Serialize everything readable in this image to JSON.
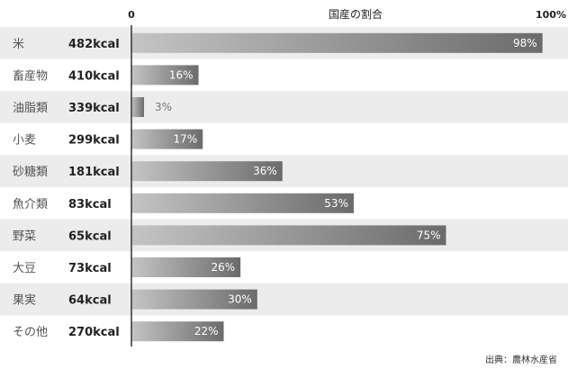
{
  "chart_data": {
    "type": "bar",
    "orientation": "horizontal",
    "title": "国産の割合",
    "xlim": [
      0,
      100
    ],
    "axis_labels": {
      "min": "0",
      "max": "100%"
    },
    "categories": [
      "米",
      "畜産物",
      "油脂類",
      "小麦",
      "砂糖類",
      "魚介類",
      "野菜",
      "大豆",
      "果実",
      "その他"
    ],
    "calories": [
      "482kcal",
      "410kcal",
      "339kcal",
      "299kcal",
      "181kcal",
      "83kcal",
      "65kcal",
      "73kcal",
      "64kcal",
      "270kcal"
    ],
    "values": [
      98,
      16,
      3,
      17,
      36,
      53,
      75,
      26,
      30,
      22
    ],
    "value_labels": [
      "98%",
      "16%",
      "3%",
      "17%",
      "36%",
      "53%",
      "75%",
      "26%",
      "30%",
      "22%"
    ],
    "grid": false,
    "legend": "none",
    "bar_color_start": "#c4c4c4",
    "bar_color_end": "#6b6b6b",
    "band_color": "#ececec"
  },
  "source": "出典：農林水産省"
}
